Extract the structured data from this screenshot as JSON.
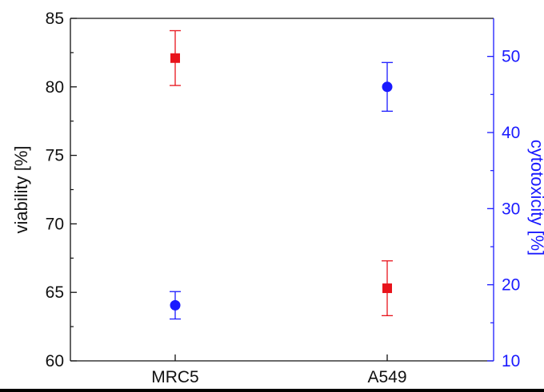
{
  "chart_data": {
    "type": "scatter",
    "categories": [
      "MRC5",
      "A549"
    ],
    "y_left": {
      "label": "viability [%]",
      "lim": [
        60,
        85
      ],
      "ticks": [
        60,
        65,
        70,
        75,
        80,
        85
      ],
      "color": "#111111"
    },
    "y_right": {
      "label": "cytotoxicity [%]",
      "lim": [
        10,
        55
      ],
      "ticks": [
        10,
        20,
        30,
        40,
        50
      ],
      "color": "#1a1aff"
    },
    "series": [
      {
        "axis": "left",
        "marker": "square",
        "color": "#e8131b",
        "values": [
          82.1,
          65.3
        ],
        "errors": [
          2.0,
          2.0
        ]
      },
      {
        "axis": "right",
        "marker": "circle",
        "color": "#1a1aff",
        "values": [
          17.3,
          46.0
        ],
        "errors": [
          1.8,
          3.2
        ]
      }
    ],
    "grid": false,
    "legend": "none"
  }
}
